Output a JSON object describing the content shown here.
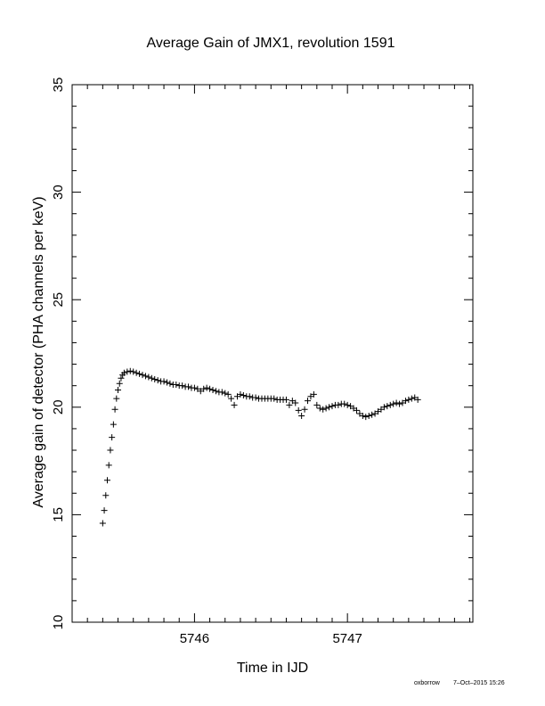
{
  "chart_data": {
    "type": "scatter",
    "title": "Average Gain of JMX1, revolution 1591",
    "xlabel": "Time in IJD",
    "ylabel": "Average gain of detector (PHA channels per keV)",
    "xlim": [
      5745.2,
      5747.82
    ],
    "ylim": [
      10,
      35
    ],
    "xticks": [
      5746,
      5747
    ],
    "yticks": [
      10,
      15,
      20,
      25,
      30,
      35
    ],
    "grid": false,
    "marker": "+",
    "series": [
      {
        "x": [
          5745.4,
          5745.41,
          5745.42,
          5745.43,
          5745.44,
          5745.45,
          5745.46,
          5745.47,
          5745.48,
          5745.49,
          5745.5,
          5745.51,
          5745.52,
          5745.53,
          5745.54,
          5745.56,
          5745.58,
          5745.6,
          5745.62,
          5745.64,
          5745.66,
          5745.68,
          5745.7,
          5745.72,
          5745.74,
          5745.76,
          5745.78,
          5745.8,
          5745.82,
          5745.84,
          5745.86,
          5745.88,
          5745.9,
          5745.92,
          5745.94,
          5745.96,
          5745.98,
          5746.0,
          5746.02,
          5746.04,
          5746.06,
          5746.08,
          5746.1,
          5746.12,
          5746.14,
          5746.16,
          5746.18,
          5746.2,
          5746.22,
          5746.24,
          5746.26,
          5746.28,
          5746.3,
          5746.32,
          5746.34,
          5746.36,
          5746.38,
          5746.4,
          5746.42,
          5746.44,
          5746.46,
          5746.48,
          5746.5,
          5746.52,
          5746.54,
          5746.56,
          5746.58,
          5746.6,
          5746.62,
          5746.64,
          5746.66,
          5746.68,
          5746.7,
          5746.72,
          5746.74,
          5746.76,
          5746.78,
          5746.8,
          5746.82,
          5746.84,
          5746.86,
          5746.88,
          5746.9,
          5746.92,
          5746.94,
          5746.96,
          5746.98,
          5747.0,
          5747.02,
          5747.04,
          5747.06,
          5747.08,
          5747.1,
          5747.12,
          5747.14,
          5747.16,
          5747.18,
          5747.2,
          5747.22,
          5747.24,
          5747.26,
          5747.28,
          5747.3,
          5747.32,
          5747.34,
          5747.36,
          5747.38,
          5747.4,
          5747.42,
          5747.44,
          5747.46
        ],
        "y": [
          14.6,
          15.2,
          15.9,
          16.6,
          17.3,
          18.0,
          18.6,
          19.2,
          19.9,
          20.4,
          20.8,
          21.1,
          21.35,
          21.5,
          21.6,
          21.65,
          21.68,
          21.65,
          21.6,
          21.55,
          21.5,
          21.45,
          21.4,
          21.35,
          21.3,
          21.25,
          21.2,
          21.2,
          21.15,
          21.1,
          21.05,
          21.05,
          21.0,
          21.0,
          20.95,
          20.95,
          20.9,
          20.9,
          20.85,
          20.75,
          20.85,
          20.9,
          20.85,
          20.8,
          20.75,
          20.7,
          20.7,
          20.65,
          20.6,
          20.4,
          20.1,
          20.5,
          20.6,
          20.55,
          20.5,
          20.5,
          20.45,
          20.45,
          20.4,
          20.4,
          20.4,
          20.4,
          20.4,
          20.4,
          20.35,
          20.35,
          20.35,
          20.35,
          20.1,
          20.3,
          20.2,
          19.85,
          19.6,
          19.9,
          20.3,
          20.5,
          20.6,
          20.1,
          19.95,
          19.9,
          19.95,
          20.0,
          20.05,
          20.1,
          20.1,
          20.15,
          20.15,
          20.1,
          20.05,
          19.95,
          19.85,
          19.7,
          19.6,
          19.55,
          19.6,
          19.65,
          19.7,
          19.8,
          19.9,
          20.0,
          20.05,
          20.1,
          20.15,
          20.2,
          20.15,
          20.2,
          20.3,
          20.35,
          20.4,
          20.45,
          20.35
        ]
      }
    ]
  },
  "footer": {
    "user": "oxborrow",
    "timestamp": "7–Oct–2015 15:26"
  },
  "colors": {
    "background": "#ffffff",
    "foreground": "#000000"
  }
}
